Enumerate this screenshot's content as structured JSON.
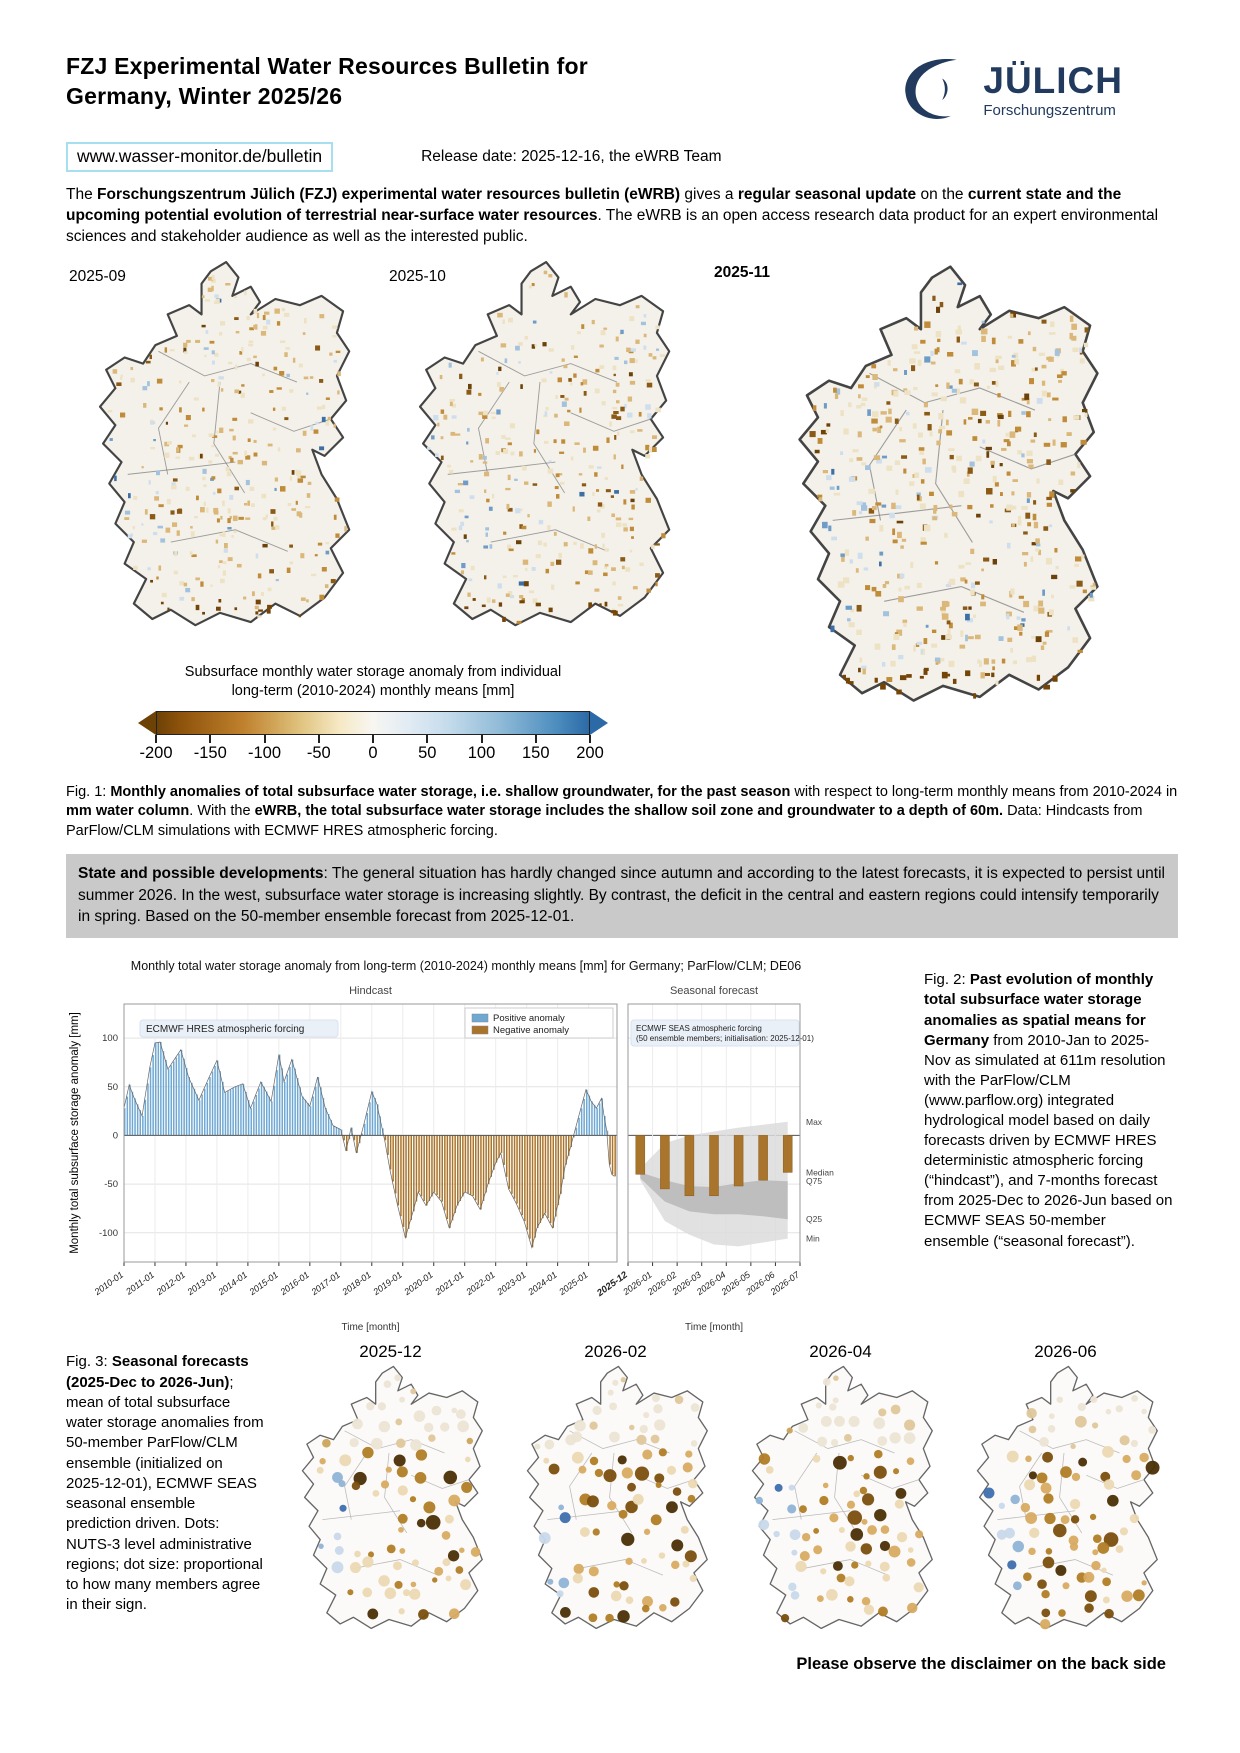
{
  "page": {
    "title_line1": "FZJ Experimental Water Resources Bulletin for",
    "title_line2": "Germany, Winter 2025/26",
    "url": "www.wasser-monitor.de/bulletin",
    "release": "Release date: 2025-12-16, the eWRB Team",
    "logo": {
      "brand": "JÜLICH",
      "sub": "Forschungszentrum",
      "color": "#213a5e"
    },
    "footer_disclaimer": "Please observe the disclaimer on the back side"
  },
  "intro_segments": [
    {
      "t": "The ",
      "b": 0
    },
    {
      "t": "Forschungszentrum Jülich (FZJ) experimental water resources bulletin (eWRB)",
      "b": 1
    },
    {
      "t": " gives a ",
      "b": 0
    },
    {
      "t": "regular seasonal update",
      "b": 1
    },
    {
      "t": " on the ",
      "b": 0
    },
    {
      "t": "current state and the upcoming potential evolution of terrestrial near-surface water resources",
      "b": 1
    },
    {
      "t": ". The eWRB is an open access research data product for an expert environmental sciences and stakeholder audience as well as the interested public.",
      "b": 0
    }
  ],
  "fig1": {
    "maps": [
      {
        "label": "2025-09",
        "seed": 7
      },
      {
        "label": "2025-10",
        "seed": 13
      },
      {
        "label": "2025-11",
        "seed": 29
      }
    ],
    "colorbar": {
      "title_line1": "Subsurface monthly water storage anomaly from individual",
      "title_line2": "long-term (2010-2024) monthly means [mm]",
      "ticks": [
        "-200",
        "-150",
        "-100",
        "-50",
        "0",
        "50",
        "100",
        "150",
        "200"
      ]
    },
    "caption_segments": [
      {
        "t": "Fig. 1: ",
        "b": 0
      },
      {
        "t": "Monthly anomalies of total subsurface water storage, i.e. shallow groundwater, for the past season",
        "b": 1
      },
      {
        "t": " with respect to long-term monthly means from 2010-2024 in ",
        "b": 0
      },
      {
        "t": "mm water column",
        "b": 1
      },
      {
        "t": ". With the ",
        "b": 0
      },
      {
        "t": "eWRB, the total subsurface water storage includes the shallow soil zone and groundwater to a depth of 60m.",
        "b": 1
      },
      {
        "t": " Data: Hindcasts from ParFlow/CLM simulations with ECMWF HRES atmospheric forcing.",
        "b": 0
      }
    ]
  },
  "statebox_segments": [
    {
      "t": "State and possible developments",
      "b": 1
    },
    {
      "t": ": The general situation has hardly changed since autumn and according to the latest forecasts, it is expected to persist until summer 2026. In the west, subsurface water storage is increasing slightly. By contrast, the deficit in the central and eastern regions could intensify temporarily in spring. Based on the 50-member ensemble forecast from 2025-12-01.",
      "b": 0
    }
  ],
  "chart_data": {
    "type": "bar",
    "title": "Monthly total water storage anomaly from long-term (2010-2024) monthly means [mm] for Germany; ParFlow/CLM; DE06",
    "ylabel": "Monthly total subsurface storage anomaly [mm]",
    "xlabel": "Time [month]",
    "ylim": [
      -130,
      135
    ],
    "yticks": [
      100,
      50,
      0,
      -50,
      -100
    ],
    "legend": [
      {
        "label": "Positive anomaly",
        "color": "#6fa8d2"
      },
      {
        "label": "Negative anomaly",
        "color": "#a9742c"
      }
    ],
    "hindcast": {
      "panel_title": "Hindcast",
      "annotation": "ECMWF HRES atmospheric forcing",
      "x_ticks": [
        "2010-01",
        "2011-01",
        "2012-01",
        "2013-01",
        "2014-01",
        "2015-01",
        "2016-01",
        "2017-01",
        "2018-01",
        "2019-01",
        "2020-01",
        "2021-01",
        "2022-01",
        "2023-01",
        "2024-01",
        "2025-01"
      ],
      "n_months": 191,
      "keypoints": [
        [
          0,
          28
        ],
        [
          2,
          52
        ],
        [
          4,
          38
        ],
        [
          7,
          20
        ],
        [
          10,
          70
        ],
        [
          12,
          95
        ],
        [
          14,
          96
        ],
        [
          17,
          68
        ],
        [
          20,
          80
        ],
        [
          22,
          88
        ],
        [
          25,
          60
        ],
        [
          29,
          36
        ],
        [
          33,
          60
        ],
        [
          36,
          77
        ],
        [
          39,
          44
        ],
        [
          43,
          50
        ],
        [
          46,
          53
        ],
        [
          49,
          28
        ],
        [
          53,
          55
        ],
        [
          57,
          35
        ],
        [
          60,
          83
        ],
        [
          62,
          55
        ],
        [
          65,
          78
        ],
        [
          69,
          40
        ],
        [
          72,
          30
        ],
        [
          75,
          60
        ],
        [
          78,
          28
        ],
        [
          81,
          10
        ],
        [
          84,
          6
        ],
        [
          86,
          -16
        ],
        [
          88,
          8
        ],
        [
          90,
          -18
        ],
        [
          93,
          12
        ],
        [
          96,
          45
        ],
        [
          98,
          32
        ],
        [
          101,
          -5
        ],
        [
          103,
          -35
        ],
        [
          106,
          -72
        ],
        [
          109,
          -105
        ],
        [
          112,
          -78
        ],
        [
          114,
          -58
        ],
        [
          117,
          -72
        ],
        [
          120,
          -58
        ],
        [
          123,
          -68
        ],
        [
          126,
          -95
        ],
        [
          129,
          -72
        ],
        [
          132,
          -58
        ],
        [
          135,
          -62
        ],
        [
          138,
          -76
        ],
        [
          141,
          -50
        ],
        [
          144,
          -28
        ],
        [
          146,
          -18
        ],
        [
          149,
          -55
        ],
        [
          152,
          -70
        ],
        [
          155,
          -88
        ],
        [
          158,
          -115
        ],
        [
          160,
          -95
        ],
        [
          163,
          -80
        ],
        [
          166,
          -95
        ],
        [
          169,
          -60
        ],
        [
          171,
          -30
        ],
        [
          173,
          -12
        ],
        [
          175,
          8
        ],
        [
          177,
          28
        ],
        [
          179,
          47
        ],
        [
          181,
          35
        ],
        [
          183,
          28
        ],
        [
          185,
          38
        ],
        [
          186,
          20
        ],
        [
          187,
          5
        ],
        [
          188,
          -30
        ],
        [
          189,
          -40
        ],
        [
          190,
          -42
        ]
      ]
    },
    "forecast": {
      "panel_title": "Seasonal forecast",
      "annotation_line1": "ECMWF SEAS atmospheric forcing",
      "annotation_line2": "(50 ensemble members; initialisation: 2025-12-01)",
      "x_ticks": [
        "2025-12",
        "2026-01",
        "2026-02",
        "2026-03",
        "2026-04",
        "2026-05",
        "2026-06",
        "2026-07"
      ],
      "bold_tick": "2025-12",
      "months": [
        "2025-12",
        "2026-01",
        "2026-02",
        "2026-03",
        "2026-04",
        "2026-05",
        "2026-06"
      ],
      "median": [
        -40,
        -55,
        -62,
        -62,
        -52,
        -46,
        -38
      ],
      "q75": [
        -38,
        -46,
        -52,
        -53,
        -49,
        -46,
        -47
      ],
      "q25": [
        -44,
        -68,
        -78,
        -81,
        -81,
        -83,
        -86
      ],
      "max": [
        -34,
        -8,
        0,
        4,
        8,
        11,
        14
      ],
      "min": [
        -46,
        -88,
        -102,
        -112,
        -114,
        -110,
        -106
      ],
      "right_labels": [
        "Max",
        "Median",
        "Q75",
        "Q25",
        "Min"
      ]
    }
  },
  "fig2_caption_segments": [
    {
      "t": "Fig. 2: ",
      "b": 0
    },
    {
      "t": "Past evolution of monthly total subsurface water storage anomalies as spatial means for Germany",
      "b": 1
    },
    {
      "t": " from 2010-Jan to 2025-Nov as simulated at 611m resolution with the ParFlow/CLM (www.parflow.org) integrated hydrological model based on daily forecasts driven by ECMWF HRES deterministic atmospheric forcing (“hindcast”), and 7-months forecast from 2025-Dec to 2026-Jun based on ECMWF SEAS 50-member ensemble (“seasonal forecast”).",
      "b": 0
    }
  ],
  "fig3": {
    "caption_segments": [
      {
        "t": "Fig. 3: ",
        "b": 0
      },
      {
        "t": "Seasonal forecasts (2025-Dec to 2026-Jun)",
        "b": 1
      },
      {
        "t": "; mean of total subsurface water storage anomalies from 50-member ParFlow/CLM ensemble (initialized on 2025-12-01), ECMWF SEAS seasonal ensemble prediction driven. Dots: NUTS-3 level administrative regions; dot size: proportional to how many members agree in their sign.",
        "b": 0
      }
    ],
    "maps": [
      {
        "label": "2025-12",
        "seed": 101
      },
      {
        "label": "2026-02",
        "seed": 202
      },
      {
        "label": "2026-04",
        "seed": 303
      },
      {
        "label": "2026-06",
        "seed": 404
      }
    ]
  },
  "map_style": {
    "land_fill": "#f3f1ea",
    "border": "#444444",
    "dark_south": "#754508",
    "blues": [
      "#cfdeed",
      "#a3c2dd",
      "#6e9cc6",
      "#3d6fa5"
    ],
    "browns": [
      "#eee2c4",
      "#dbb87a",
      "#c08c3a",
      "#8a5a16",
      "#6b4209"
    ],
    "dot_blues": [
      "#c9d9ea",
      "#8fb3d6",
      "#3e6fae"
    ],
    "dot_browns": [
      "#ecd9b3",
      "#d8ab62",
      "#b07d25",
      "#7b4f0e",
      "#4a2f05"
    ],
    "dot_pale": [
      "#ece4d4",
      "#dfc79b",
      "#cba45c"
    ]
  }
}
